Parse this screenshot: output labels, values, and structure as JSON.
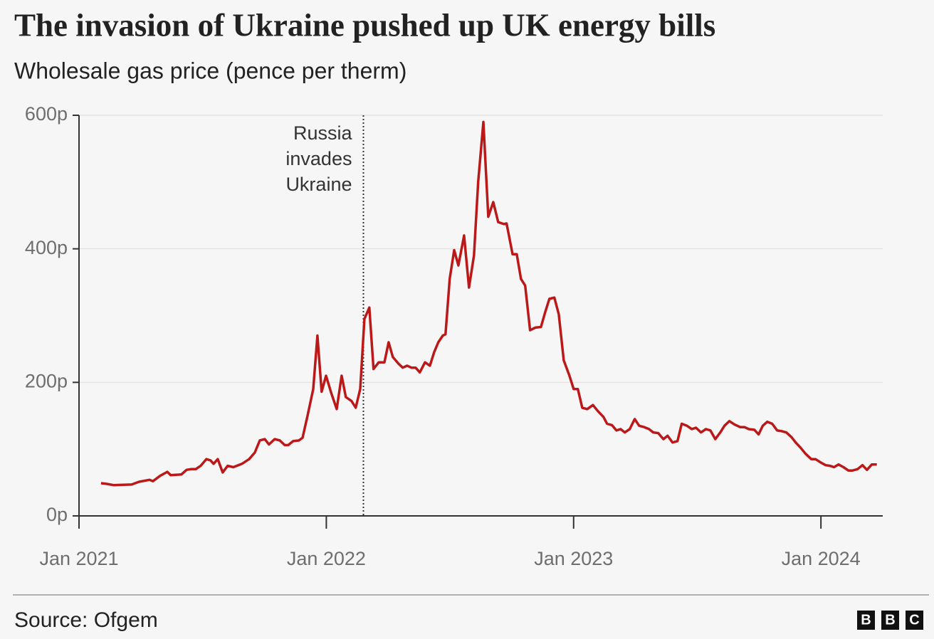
{
  "chart_data": {
    "type": "line",
    "title": "The invasion of Ukraine pushed up UK energy bills",
    "subtitle": "Wholesale gas price (pence per therm)",
    "source": "Source: Ofgem",
    "logo": [
      "B",
      "B",
      "C"
    ],
    "xlim": [
      2021,
      2024.25
    ],
    "xticks": [
      {
        "value": 2021,
        "label": "Jan 2021"
      },
      {
        "value": 2022,
        "label": "Jan 2022"
      },
      {
        "value": 2023,
        "label": "Jan 2023"
      },
      {
        "value": 2024,
        "label": "Jan 2024"
      }
    ],
    "ylim": [
      0,
      600
    ],
    "yticks": [
      {
        "value": 0,
        "label": "0p"
      },
      {
        "value": 200,
        "label": "200p"
      },
      {
        "value": 400,
        "label": "400p"
      },
      {
        "value": 600,
        "label": "600p"
      }
    ],
    "grid": true,
    "annotation": {
      "x": 2022.15,
      "text": [
        "Russia",
        "invades",
        "Ukraine"
      ]
    },
    "series": [
      {
        "name": "Wholesale gas price",
        "color": "#bb1919",
        "x": [
          2021.089,
          2021.112,
          2021.141,
          2021.213,
          2021.242,
          2021.285,
          2021.299,
          2021.328,
          2021.357,
          2021.371,
          2021.414,
          2021.435,
          2021.452,
          2021.472,
          2021.492,
          2021.515,
          2021.532,
          2021.544,
          2021.561,
          2021.581,
          2021.601,
          2021.624,
          2021.659,
          2021.688,
          2021.711,
          2021.731,
          2021.751,
          2021.768,
          2021.791,
          2021.812,
          2021.832,
          2021.846,
          2021.866,
          2021.889,
          2021.904,
          2021.924,
          2021.947,
          2021.964,
          2021.981,
          2021.999,
          2022.019,
          2022.042,
          2022.062,
          2022.079,
          2022.102,
          2022.119,
          2022.137,
          2022.154,
          2022.174,
          2022.191,
          2022.212,
          2022.235,
          2022.252,
          2022.269,
          2022.292,
          2022.309,
          2022.327,
          2022.344,
          2022.361,
          2022.378,
          2022.399,
          2022.419,
          2022.436,
          2022.453,
          2022.471,
          2022.482,
          2022.499,
          2022.517,
          2022.534,
          2022.557,
          2022.577,
          2022.597,
          2022.614,
          2022.635,
          2022.655,
          2022.675,
          2022.695,
          2022.718,
          2022.729,
          2022.753,
          2022.77,
          2022.787,
          2022.804,
          2022.824,
          2022.845,
          2022.868,
          2022.885,
          2022.902,
          2022.922,
          2022.94,
          2022.96,
          2022.983,
          2023.0,
          2023.017,
          2023.035,
          2023.055,
          2023.078,
          2023.098,
          2023.121,
          2023.135,
          2023.155,
          2023.173,
          2023.19,
          2023.207,
          2023.227,
          2023.247,
          2023.265,
          2023.285,
          2023.305,
          2023.322,
          2023.342,
          2023.363,
          2023.38,
          2023.4,
          2023.42,
          2023.437,
          2023.458,
          2023.478,
          2023.495,
          2023.515,
          2023.535,
          2023.553,
          2023.573,
          2023.593,
          2023.61,
          2023.63,
          2023.65,
          2023.673,
          2023.691,
          2023.708,
          2023.731,
          2023.748,
          2023.765,
          2023.783,
          2023.803,
          2023.823,
          2023.84,
          2023.86,
          2023.881,
          2023.898,
          2023.918,
          2023.938,
          2023.961,
          2023.978,
          2023.999,
          2024.019,
          2024.036,
          2024.053,
          2024.071,
          2024.091,
          2024.111,
          2024.128,
          2024.148,
          2024.168,
          2024.186,
          2024.206,
          2024.226
        ],
        "values": [
          49,
          48,
          46,
          47,
          51,
          54,
          52,
          60,
          66,
          61,
          62,
          69,
          70,
          70,
          75,
          85,
          83,
          78,
          85,
          65,
          75,
          73,
          78,
          85,
          95,
          113,
          115,
          107,
          115,
          113,
          106,
          106,
          112,
          113,
          117,
          150,
          190,
          270,
          186,
          210,
          185,
          160,
          210,
          178,
          172,
          162,
          190,
          295,
          312,
          220,
          230,
          230,
          260,
          238,
          228,
          222,
          225,
          222,
          222,
          215,
          230,
          225,
          245,
          260,
          270,
          272,
          355,
          398,
          375,
          420,
          342,
          390,
          500,
          590,
          448,
          470,
          440,
          437,
          438,
          392,
          392,
          355,
          345,
          278,
          282,
          283,
          305,
          325,
          327,
          302,
          233,
          210,
          190,
          190,
          162,
          160,
          166,
          157,
          148,
          138,
          136,
          128,
          130,
          125,
          130,
          145,
          135,
          133,
          130,
          125,
          124,
          115,
          120,
          110,
          112,
          138,
          135,
          130,
          132,
          125,
          130,
          128,
          115,
          125,
          135,
          142,
          137,
          133,
          133,
          130,
          129,
          122,
          135,
          141,
          138,
          128,
          127,
          125,
          118,
          110,
          102,
          93,
          85,
          85,
          80,
          76,
          75,
          73,
          77,
          73,
          68,
          68,
          70,
          76,
          69,
          77,
          77
        ]
      }
    ]
  }
}
